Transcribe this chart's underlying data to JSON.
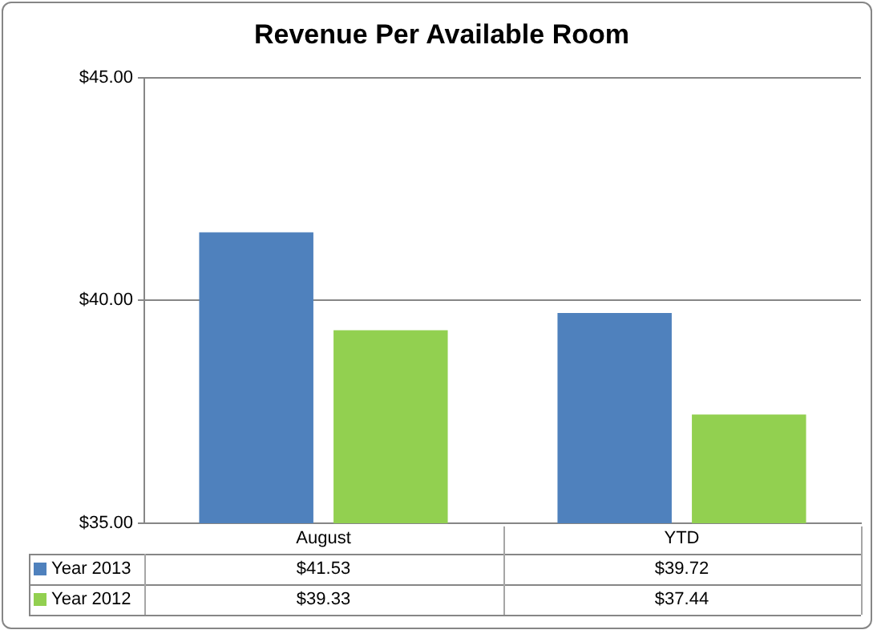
{
  "chart_data": {
    "type": "bar",
    "title": "Revenue Per Available Room",
    "categories": [
      "August",
      "YTD"
    ],
    "series": [
      {
        "name": "Year 2013",
        "color": "#4f81bd",
        "values": [
          41.53,
          39.72
        ],
        "value_labels": [
          "$41.53",
          "$39.72"
        ]
      },
      {
        "name": "Year 2012",
        "color": "#92d050",
        "values": [
          39.33,
          37.44
        ],
        "value_labels": [
          "$39.33",
          "$37.44"
        ]
      }
    ],
    "ylim": [
      35,
      45
    ],
    "yticks": [
      {
        "value": 35,
        "label": "$35.00"
      },
      {
        "value": 40,
        "label": "$40.00"
      },
      {
        "value": 45,
        "label": "$45.00"
      }
    ],
    "grid": "y",
    "legend": "bottom"
  }
}
